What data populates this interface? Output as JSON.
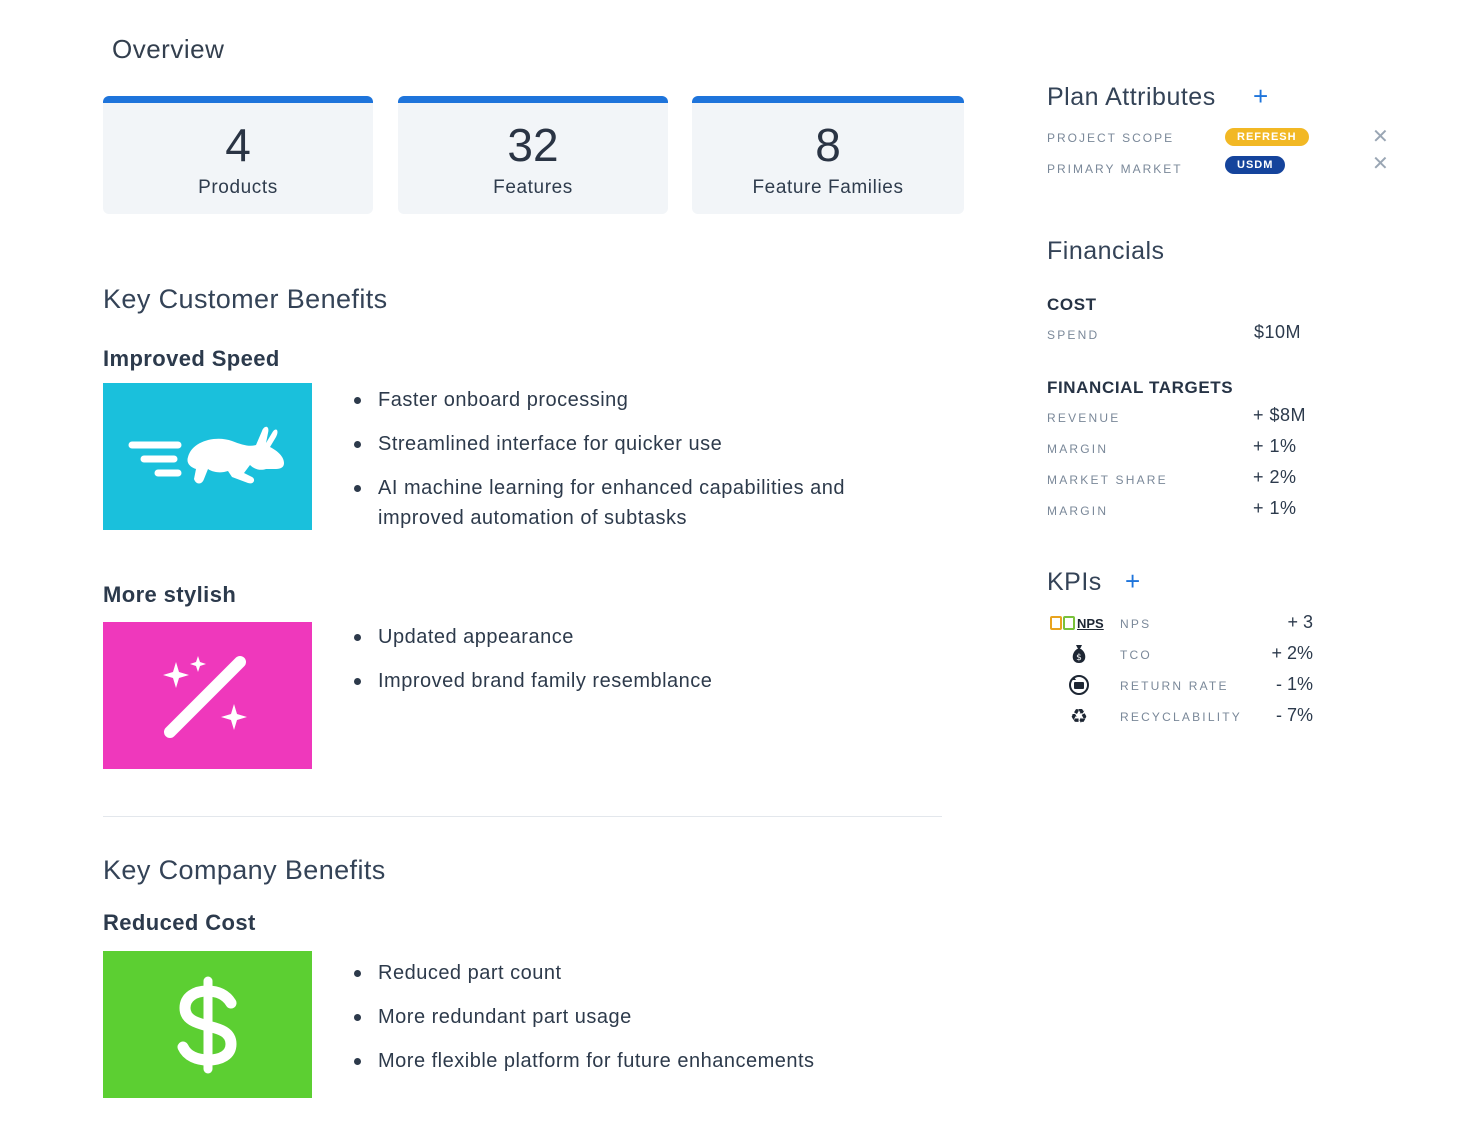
{
  "overview": {
    "title": "Overview",
    "stats": [
      {
        "value": "4",
        "label": "Products"
      },
      {
        "value": "32",
        "label": "Features"
      },
      {
        "value": "8",
        "label": "Feature Families"
      }
    ]
  },
  "customer_benefits": {
    "title": "Key Customer Benefits",
    "groups": [
      {
        "title": "Improved Speed",
        "icon": "running-rabbit-icon",
        "color": "#1ac0dc",
        "bullets": [
          "Faster onboard processing",
          "Streamlined interface for quicker use",
          "AI machine learning for enhanced capabilities and improved automation of subtasks"
        ]
      },
      {
        "title": "More stylish",
        "icon": "magic-wand-icon",
        "color": "#ef38bc",
        "bullets": [
          "Updated appearance",
          "Improved brand family resemblance"
        ]
      }
    ]
  },
  "company_benefits": {
    "title": "Key Company Benefits",
    "groups": [
      {
        "title": "Reduced Cost",
        "icon": "dollar-sign-icon",
        "color": "#5ccf32",
        "bullets": [
          "Reduced part count",
          "More redundant part usage",
          "More flexible platform for future enhancements"
        ]
      }
    ]
  },
  "plan_attributes": {
    "title": "Plan Attributes",
    "items": [
      {
        "label": "PROJECT SCOPE",
        "badge": "REFRESH",
        "badge_color": "#f2b824"
      },
      {
        "label": "PRIMARY MARKET",
        "badge": "USDM",
        "badge_color": "#15449c"
      }
    ]
  },
  "financials": {
    "title": "Financials",
    "cost_heading": "COST",
    "cost_rows": [
      {
        "label": "SPEND",
        "value": "$10M"
      }
    ],
    "targets_heading": "FINANCIAL TARGETS",
    "target_rows": [
      {
        "label": "REVENUE",
        "value": "+ $8M"
      },
      {
        "label": "MARGIN",
        "value": "+ 1%"
      },
      {
        "label": "MARKET SHARE",
        "value": "+ 2%"
      },
      {
        "label": "MARGIN",
        "value": "+ 1%"
      }
    ]
  },
  "kpis": {
    "title": "KPIs",
    "rows": [
      {
        "icon": "nps-logo-icon",
        "icon_text": "NPS",
        "label": "NPS",
        "value": "+ 3"
      },
      {
        "icon": "money-bag-icon",
        "label": "TCO",
        "value": "+ 2%"
      },
      {
        "icon": "return-rate-icon",
        "label": "RETURN RATE",
        "value": "- 1%"
      },
      {
        "icon": "recycle-icon",
        "label": "RECYCLABILITY",
        "value": "- 7%"
      }
    ]
  }
}
